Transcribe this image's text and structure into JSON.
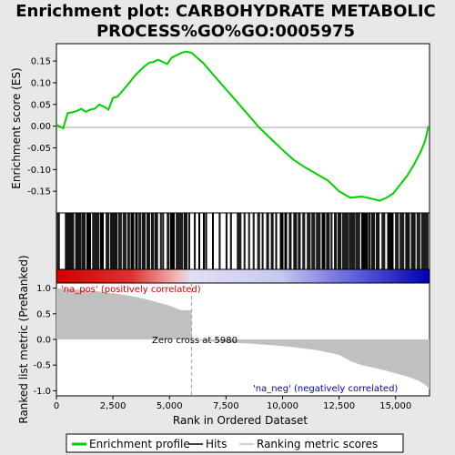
{
  "chart_data": {
    "type": "line",
    "title_line1": "Enrichment plot: CARBOHYDRATE METABOLIC",
    "title_line2": "PROCESS%GO%GO:0005975",
    "enrichment_ylabel": "Enrichment score (ES)",
    "ranked_ylabel": "Ranked list metric (PreRanked)",
    "xlabel": "Rank in Ordered Dataset",
    "x_range": [
      0,
      16500
    ],
    "x_ticks": [
      "0",
      "2,500",
      "5,000",
      "7,500",
      "10,000",
      "12,500",
      "15,000"
    ],
    "x_tick_values": [
      0,
      2500,
      5000,
      7500,
      10000,
      12500,
      15000
    ],
    "es_range": [
      -0.2,
      0.19
    ],
    "es_ticks": [
      "0.15",
      "0.10",
      "0.05",
      "0.00",
      "-0.05",
      "-0.10",
      "-0.15"
    ],
    "es_tick_values": [
      0.15,
      0.1,
      0.05,
      0.0,
      -0.05,
      -0.1,
      -0.15
    ],
    "metric_range": [
      -1.1,
      1.1
    ],
    "metric_ticks": [
      "1.0",
      "0.5",
      "0.0",
      "-0.5",
      "-1.0"
    ],
    "metric_tick_values": [
      1.0,
      0.5,
      0.0,
      -0.5,
      -1.0
    ],
    "zero_cross_label": "Zero cross at 5980",
    "zero_cross": 5980,
    "pos_label": "'na_pos' (positively correlated)",
    "neg_label": "'na_neg' (negatively correlated)",
    "legend": [
      "Enrichment profile",
      "Hits",
      "Ranking metric scores"
    ],
    "colors": {
      "enrichment": "#00d000",
      "hits": "#000000",
      "metric": "#c0c0c0",
      "pos_text": "#d00000",
      "neg_text": "#0000c0",
      "grid": "#a0a0a0"
    },
    "enrichment_profile": {
      "x": [
        0,
        300,
        500,
        700,
        900,
        1100,
        1300,
        1500,
        1700,
        1900,
        2100,
        2300,
        2500,
        2700,
        2900,
        3100,
        3300,
        3500,
        3700,
        3900,
        4100,
        4300,
        4500,
        4700,
        4900,
        5100,
        5300,
        5500,
        5700,
        5900,
        6000,
        6500,
        7000,
        7500,
        8000,
        8500,
        9000,
        9500,
        10000,
        10500,
        11000,
        11500,
        12000,
        12500,
        13000,
        13500,
        14000,
        14300,
        14600,
        14900,
        15200,
        15500,
        15800,
        16100,
        16300,
        16450
      ],
      "y": [
        0.003,
        -0.005,
        0.03,
        0.032,
        0.035,
        0.04,
        0.033,
        0.038,
        0.04,
        0.05,
        0.045,
        0.038,
        0.065,
        0.068,
        0.08,
        0.092,
        0.105,
        0.118,
        0.128,
        0.138,
        0.146,
        0.148,
        0.153,
        0.148,
        0.143,
        0.158,
        0.163,
        0.168,
        0.172,
        0.17,
        0.168,
        0.145,
        0.115,
        0.085,
        0.055,
        0.025,
        -0.005,
        -0.03,
        -0.055,
        -0.078,
        -0.095,
        -0.11,
        -0.125,
        -0.15,
        -0.165,
        -0.162,
        -0.168,
        -0.172,
        -0.165,
        -0.155,
        -0.135,
        -0.115,
        -0.09,
        -0.06,
        -0.035,
        0.0
      ]
    },
    "ranked_metric": {
      "x": [
        0,
        500,
        1000,
        1500,
        2000,
        2500,
        3000,
        3500,
        4000,
        4500,
        5000,
        5500,
        5980,
        6500,
        7500,
        8500,
        9500,
        10500,
        11500,
        12500,
        13000,
        13500,
        14000,
        14500,
        15000,
        15500,
        16000,
        16300,
        16500
      ],
      "y": [
        1.0,
        0.98,
        0.97,
        0.95,
        0.93,
        0.9,
        0.87,
        0.83,
        0.78,
        0.72,
        0.66,
        0.57,
        0.0,
        -0.03,
        -0.06,
        -0.08,
        -0.11,
        -0.15,
        -0.21,
        -0.3,
        -0.42,
        -0.5,
        -0.55,
        -0.6,
        -0.66,
        -0.72,
        -0.8,
        -0.88,
        -0.97
      ]
    },
    "hit_segments": [
      [
        50,
        150
      ],
      [
        400,
        800
      ],
      [
        850,
        1100
      ],
      [
        1150,
        1300
      ],
      [
        1350,
        1550
      ],
      [
        1600,
        1900
      ],
      [
        1950,
        2100
      ],
      [
        2200,
        2350
      ],
      [
        2400,
        2700
      ],
      [
        2750,
        2900
      ],
      [
        2950,
        3100
      ],
      [
        3150,
        3250
      ],
      [
        3300,
        3450
      ],
      [
        3500,
        3600
      ],
      [
        3650,
        3750
      ],
      [
        3800,
        3950
      ],
      [
        4000,
        4150
      ],
      [
        4200,
        4300
      ],
      [
        4350,
        4500
      ],
      [
        4600,
        4650
      ],
      [
        4700,
        4750
      ],
      [
        4900,
        5000
      ],
      [
        5050,
        5250
      ],
      [
        5300,
        5600
      ],
      [
        5650,
        5800
      ],
      [
        5850,
        5900
      ],
      [
        6100,
        6150
      ],
      [
        6300,
        6350
      ],
      [
        6500,
        6550
      ],
      [
        6600,
        6650
      ],
      [
        6900,
        6950
      ],
      [
        7200,
        7250
      ],
      [
        7500,
        7550
      ],
      [
        7700,
        7750
      ],
      [
        8000,
        8200
      ],
      [
        8300,
        8350
      ],
      [
        8500,
        8550
      ],
      [
        8700,
        8750
      ],
      [
        8900,
        9000
      ],
      [
        9100,
        9150
      ],
      [
        9300,
        9400
      ],
      [
        9500,
        9600
      ],
      [
        9700,
        9750
      ],
      [
        9900,
        10050
      ],
      [
        10100,
        10200
      ],
      [
        10300,
        10400
      ],
      [
        10500,
        10650
      ],
      [
        10700,
        10800
      ],
      [
        10900,
        11000
      ],
      [
        11100,
        11250
      ],
      [
        11300,
        11450
      ],
      [
        11500,
        11700
      ],
      [
        11750,
        11900
      ],
      [
        11950,
        12100
      ],
      [
        12150,
        12200
      ],
      [
        12300,
        12400
      ],
      [
        12450,
        12600
      ],
      [
        12650,
        12900
      ],
      [
        12950,
        13200
      ],
      [
        13250,
        13450
      ],
      [
        13500,
        13750
      ],
      [
        13800,
        13900
      ],
      [
        13950,
        14100
      ],
      [
        14150,
        14300
      ],
      [
        14400,
        14550
      ],
      [
        14650,
        14900
      ],
      [
        15000,
        15150
      ],
      [
        15200,
        15400
      ],
      [
        15450,
        15650
      ],
      [
        15700,
        15900
      ],
      [
        15950,
        16100
      ],
      [
        16150,
        16450
      ]
    ]
  }
}
